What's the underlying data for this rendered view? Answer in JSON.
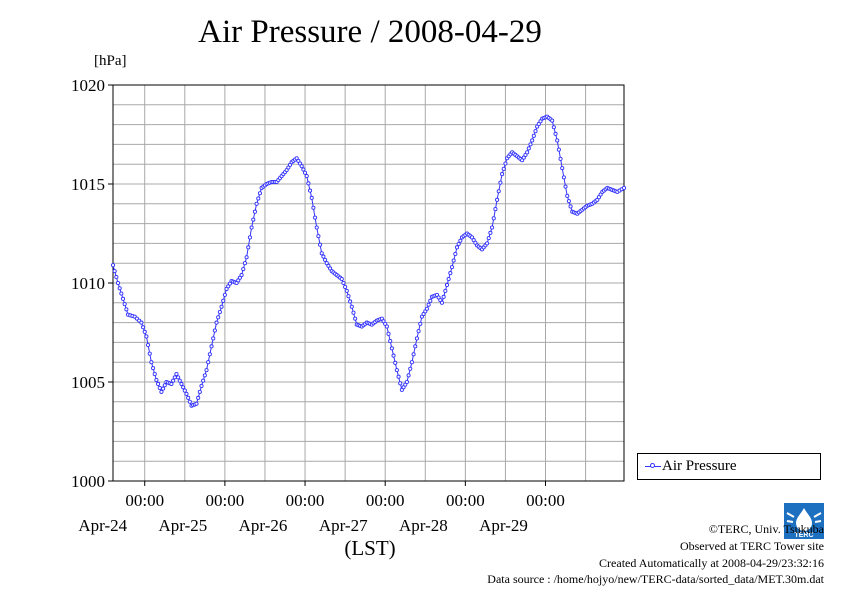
{
  "chart_data": {
    "type": "line",
    "title": "Air Pressure / 2008-04-29",
    "ylabel": "[hPa]",
    "xlabel": "(LST)",
    "ylim": [
      1000,
      1020
    ],
    "yticks": [
      1000,
      1005,
      1010,
      1015,
      1020
    ],
    "xlim": [
      "2008-04-23T14:30",
      "2008-04-29T23:30"
    ],
    "x_tick_labels": [
      {
        "date": "2008-04-24",
        "time": "00:00",
        "day": "Apr-24"
      },
      {
        "date": "2008-04-25",
        "time": "00:00",
        "day": "Apr-25"
      },
      {
        "date": "2008-04-26",
        "time": "00:00",
        "day": "Apr-26"
      },
      {
        "date": "2008-04-27",
        "time": "00:00",
        "day": "Apr-27"
      },
      {
        "date": "2008-04-28",
        "time": "00:00",
        "day": "Apr-28"
      },
      {
        "date": "2008-04-29",
        "time": "00:00",
        "day": "Apr-29"
      }
    ],
    "grid": true,
    "legend_position": "bottom-right, outside plot",
    "series": [
      {
        "name": "Air Pressure",
        "color": "#3333ff",
        "marker": "open-circle",
        "points": [
          [
            "2008-04-23T14:30",
            1010.9
          ],
          [
            "2008-04-23T16:00",
            1010.0
          ],
          [
            "2008-04-23T17:30",
            1009.2
          ],
          [
            "2008-04-23T19:00",
            1008.4
          ],
          [
            "2008-04-23T21:00",
            1008.3
          ],
          [
            "2008-04-23T23:00",
            1008.0
          ],
          [
            "2008-04-24T00:30",
            1007.3
          ],
          [
            "2008-04-24T02:00",
            1006.0
          ],
          [
            "2008-04-24T03:30",
            1005.1
          ],
          [
            "2008-04-24T05:00",
            1004.5
          ],
          [
            "2008-04-24T06:30",
            1005.0
          ],
          [
            "2008-04-24T08:00",
            1004.9
          ],
          [
            "2008-04-24T09:30",
            1005.4
          ],
          [
            "2008-04-24T11:00",
            1004.9
          ],
          [
            "2008-04-24T12:30",
            1004.4
          ],
          [
            "2008-04-24T14:00",
            1003.8
          ],
          [
            "2008-04-24T15:30",
            1003.9
          ],
          [
            "2008-04-24T17:00",
            1004.8
          ],
          [
            "2008-04-24T18:30",
            1005.6
          ],
          [
            "2008-04-24T20:00",
            1006.8
          ],
          [
            "2008-04-24T21:30",
            1008.0
          ],
          [
            "2008-04-24T23:00",
            1008.8
          ],
          [
            "2008-04-25T00:30",
            1009.7
          ],
          [
            "2008-04-25T02:00",
            1010.1
          ],
          [
            "2008-04-25T03:30",
            1010.0
          ],
          [
            "2008-04-25T05:00",
            1010.4
          ],
          [
            "2008-04-25T06:30",
            1011.3
          ],
          [
            "2008-04-25T08:00",
            1012.8
          ],
          [
            "2008-04-25T09:30",
            1014.0
          ],
          [
            "2008-04-25T11:00",
            1014.8
          ],
          [
            "2008-04-25T12:30",
            1015.0
          ],
          [
            "2008-04-25T14:00",
            1015.1
          ],
          [
            "2008-04-25T15:30",
            1015.1
          ],
          [
            "2008-04-25T17:00",
            1015.4
          ],
          [
            "2008-04-25T18:30",
            1015.7
          ],
          [
            "2008-04-25T20:00",
            1016.1
          ],
          [
            "2008-04-25T21:30",
            1016.3
          ],
          [
            "2008-04-25T23:00",
            1015.9
          ],
          [
            "2008-04-26T00:30",
            1015.4
          ],
          [
            "2008-04-26T02:00",
            1014.3
          ],
          [
            "2008-04-26T03:30",
            1012.8
          ],
          [
            "2008-04-26T05:00",
            1011.5
          ],
          [
            "2008-04-26T06:30",
            1011.0
          ],
          [
            "2008-04-26T08:00",
            1010.6
          ],
          [
            "2008-04-26T09:30",
            1010.4
          ],
          [
            "2008-04-26T11:00",
            1010.2
          ],
          [
            "2008-04-26T12:30",
            1009.6
          ],
          [
            "2008-04-26T14:00",
            1008.8
          ],
          [
            "2008-04-26T15:30",
            1007.9
          ],
          [
            "2008-04-26T17:00",
            1007.8
          ],
          [
            "2008-04-26T18:30",
            1008.0
          ],
          [
            "2008-04-26T20:00",
            1007.9
          ],
          [
            "2008-04-26T21:30",
            1008.1
          ],
          [
            "2008-04-26T23:00",
            1008.2
          ],
          [
            "2008-04-27T00:30",
            1007.8
          ],
          [
            "2008-04-27T02:00",
            1006.7
          ],
          [
            "2008-04-27T03:30",
            1005.6
          ],
          [
            "2008-04-27T05:00",
            1004.6
          ],
          [
            "2008-04-27T06:30",
            1005.0
          ],
          [
            "2008-04-27T08:00",
            1006.0
          ],
          [
            "2008-04-27T09:30",
            1007.2
          ],
          [
            "2008-04-27T11:00",
            1008.3
          ],
          [
            "2008-04-27T12:30",
            1008.7
          ],
          [
            "2008-04-27T14:00",
            1009.3
          ],
          [
            "2008-04-27T15:30",
            1009.4
          ],
          [
            "2008-04-27T17:00",
            1009.0
          ],
          [
            "2008-04-27T18:30",
            1009.9
          ],
          [
            "2008-04-27T20:00",
            1010.8
          ],
          [
            "2008-04-27T21:30",
            1011.8
          ],
          [
            "2008-04-27T23:00",
            1012.3
          ],
          [
            "2008-04-28T00:30",
            1012.5
          ],
          [
            "2008-04-28T02:00",
            1012.3
          ],
          [
            "2008-04-28T03:30",
            1011.9
          ],
          [
            "2008-04-28T05:00",
            1011.7
          ],
          [
            "2008-04-28T06:30",
            1012.0
          ],
          [
            "2008-04-28T08:00",
            1012.8
          ],
          [
            "2008-04-28T09:30",
            1014.2
          ],
          [
            "2008-04-28T11:00",
            1015.5
          ],
          [
            "2008-04-28T12:30",
            1016.3
          ],
          [
            "2008-04-28T14:00",
            1016.6
          ],
          [
            "2008-04-28T15:30",
            1016.4
          ],
          [
            "2008-04-28T17:00",
            1016.2
          ],
          [
            "2008-04-28T18:30",
            1016.6
          ],
          [
            "2008-04-28T20:00",
            1017.2
          ],
          [
            "2008-04-28T21:30",
            1017.9
          ],
          [
            "2008-04-28T23:00",
            1018.3
          ],
          [
            "2008-04-29T00:30",
            1018.4
          ],
          [
            "2008-04-29T02:00",
            1018.2
          ],
          [
            "2008-04-29T03:30",
            1017.2
          ],
          [
            "2008-04-29T05:00",
            1015.8
          ],
          [
            "2008-04-29T06:30",
            1014.4
          ],
          [
            "2008-04-29T08:00",
            1013.6
          ],
          [
            "2008-04-29T09:30",
            1013.5
          ],
          [
            "2008-04-29T11:00",
            1013.7
          ],
          [
            "2008-04-29T12:30",
            1013.9
          ],
          [
            "2008-04-29T14:00",
            1014.0
          ],
          [
            "2008-04-29T15:30",
            1014.2
          ],
          [
            "2008-04-29T17:00",
            1014.6
          ],
          [
            "2008-04-29T18:30",
            1014.8
          ],
          [
            "2008-04-29T20:00",
            1014.7
          ],
          [
            "2008-04-29T21:30",
            1014.6
          ],
          [
            "2008-04-29T23:30",
            1014.8
          ]
        ]
      }
    ]
  },
  "credits": {
    "copyright": "©TERC, Univ. Tsukuba",
    "site": "Observed at TERC Tower site",
    "created": "Created Automatically at 2008-04-29/23:32:16",
    "source": "Data source : /home/hojyo/new/TERC-data/sorted_data/MET.30m.dat"
  },
  "logo": {
    "text": "TERC",
    "color": "#1d6fc0"
  }
}
